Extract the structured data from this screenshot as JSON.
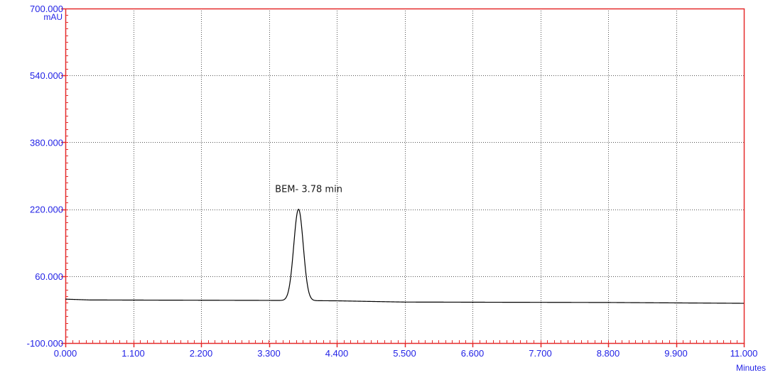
{
  "chart_data": {
    "type": "line",
    "xlabel": "Minutes",
    "ylabel": "mAU",
    "xlim": [
      0,
      11
    ],
    "ylim": [
      -100,
      700
    ],
    "x_ticks": [
      0,
      1.1,
      2.2,
      3.3,
      4.4,
      5.5,
      6.6,
      7.7,
      8.8,
      9.9,
      11
    ],
    "x_tick_labels": [
      "0.000",
      "1.100",
      "2.200",
      "3.300",
      "4.400",
      "5.500",
      "6.600",
      "7.700",
      "8.800",
      "9.900",
      "11.000"
    ],
    "y_ticks": [
      -100,
      60,
      220,
      380,
      540,
      700
    ],
    "y_tick_labels": [
      "-100.000",
      "60.000",
      "220.000",
      "380.000",
      "540.000",
      "700.000"
    ],
    "grid": true,
    "series": [
      {
        "baseline": [
          [
            0,
            5
          ],
          [
            0.4,
            3
          ],
          [
            3.3,
            2
          ],
          [
            4.4,
            1
          ],
          [
            5.5,
            -2
          ],
          [
            8.8,
            -3
          ],
          [
            11,
            -5
          ]
        ],
        "peak": {
          "center": 3.78,
          "height": 220,
          "sigma": 0.077
        }
      }
    ],
    "annotations": [
      {
        "text": "BEM- 3.78 min",
        "x": 3.78,
        "y": 220
      }
    ]
  },
  "colors": {
    "axis": "#e52b2b",
    "grid": "#555555",
    "labels": "#2323e6",
    "trace": "#000000",
    "annotation": "#1a1a1a",
    "background": "#ffffff"
  }
}
